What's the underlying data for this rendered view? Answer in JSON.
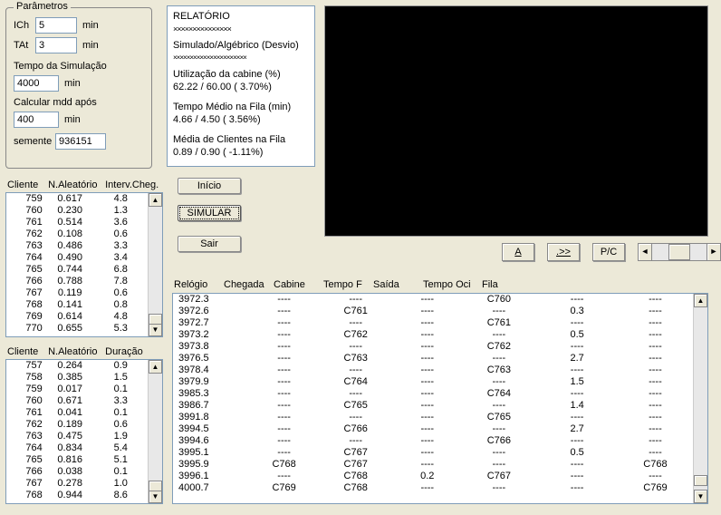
{
  "params": {
    "legend": "Parâmetros",
    "ich_label": "ICh",
    "ich_value": "5",
    "ich_unit": "min",
    "tat_label": "TAt",
    "tat_value": "3",
    "tat_unit": "min",
    "simtime_label": "Tempo da Simulação",
    "simtime_value": "4000",
    "simtime_unit": "min",
    "calcafter_label": "Calcular mdd após",
    "calcafter_value": "400",
    "calcafter_unit": "min",
    "seed_label": "semente",
    "seed_value": "936151"
  },
  "report": {
    "title": "RELATÓRIO",
    "sep": "×××××××××××××××",
    "line_sa": "Simulado/Algébrico (Desvio)",
    "sep2": "××××××××××××××××××××××",
    "util_label": "Utilização da cabine (%)",
    "util_values": "62.22 / 60.00   (  3.70%)",
    "tmf_label": "Tempo Médio na Fila (min)",
    "tmf_values": "  4.66 /   4.50   (  3.56%)",
    "mcf_label": "Média de Clientes na Fila",
    "mcf_values": "  0.89 /   0.90   ( -1.11%)"
  },
  "buttons": {
    "inicio": "Início",
    "simular": "SIMULAR",
    "sair": "Sair",
    "a": "A",
    "next": ".>>",
    "pc": "P/C"
  },
  "list_arrival": {
    "h1": "Cliente",
    "h2": "N.Aleatório",
    "h3": "Interv.Cheg.",
    "rows": [
      [
        "759",
        "0.617",
        "4.8"
      ],
      [
        "760",
        "0.230",
        "1.3"
      ],
      [
        "761",
        "0.514",
        "3.6"
      ],
      [
        "762",
        "0.108",
        "0.6"
      ],
      [
        "763",
        "0.486",
        "3.3"
      ],
      [
        "764",
        "0.490",
        "3.4"
      ],
      [
        "765",
        "0.744",
        "6.8"
      ],
      [
        "766",
        "0.788",
        "7.8"
      ],
      [
        "767",
        "0.119",
        "0.6"
      ],
      [
        "768",
        "0.141",
        "0.8"
      ],
      [
        "769",
        "0.614",
        "4.8"
      ],
      [
        "770",
        "0.655",
        "5.3"
      ]
    ]
  },
  "list_duration": {
    "h1": "Cliente",
    "h2": "N.Aleatório",
    "h3": "Duração",
    "rows": [
      [
        "757",
        "0.264",
        "0.9"
      ],
      [
        "758",
        "0.385",
        "1.5"
      ],
      [
        "759",
        "0.017",
        "0.1"
      ],
      [
        "760",
        "0.671",
        "3.3"
      ],
      [
        "761",
        "0.041",
        "0.1"
      ],
      [
        "762",
        "0.189",
        "0.6"
      ],
      [
        "763",
        "0.475",
        "1.9"
      ],
      [
        "764",
        "0.834",
        "5.4"
      ],
      [
        "765",
        "0.816",
        "5.1"
      ],
      [
        "766",
        "0.038",
        "0.1"
      ],
      [
        "767",
        "0.278",
        "1.0"
      ],
      [
        "768",
        "0.944",
        "8.6"
      ]
    ]
  },
  "main_table": {
    "headers": [
      "Relógio",
      "Chegada",
      "Cabine",
      "Tempo F",
      "Saída",
      "Tempo Oci",
      "Fila"
    ],
    "rows": [
      [
        "3972.3",
        "----",
        "----",
        "----",
        "C760",
        "----",
        "----"
      ],
      [
        "3972.6",
        "----",
        "C761",
        "----",
        "----",
        "0.3",
        "----"
      ],
      [
        "3972.7",
        "----",
        "----",
        "----",
        "C761",
        "----",
        "----"
      ],
      [
        "3973.2",
        "----",
        "C762",
        "----",
        "----",
        "0.5",
        "----"
      ],
      [
        "3973.8",
        "----",
        "----",
        "----",
        "C762",
        "----",
        "----"
      ],
      [
        "3976.5",
        "----",
        "C763",
        "----",
        "----",
        "2.7",
        "----"
      ],
      [
        "3978.4",
        "----",
        "----",
        "----",
        "C763",
        "----",
        "----"
      ],
      [
        "3979.9",
        "----",
        "C764",
        "----",
        "----",
        "1.5",
        "----"
      ],
      [
        "3985.3",
        "----",
        "----",
        "----",
        "C764",
        "----",
        "----"
      ],
      [
        "3986.7",
        "----",
        "C765",
        "----",
        "----",
        "1.4",
        "----"
      ],
      [
        "3991.8",
        "----",
        "----",
        "----",
        "C765",
        "----",
        "----"
      ],
      [
        "3994.5",
        "----",
        "C766",
        "----",
        "----",
        "2.7",
        "----"
      ],
      [
        "3994.6",
        "----",
        "----",
        "----",
        "C766",
        "----",
        "----"
      ],
      [
        "3995.1",
        "----",
        "C767",
        "----",
        "----",
        "0.5",
        "----"
      ],
      [
        "3995.9",
        "C768",
        "C767",
        "----",
        "----",
        "----",
        "C768"
      ],
      [
        "3996.1",
        "----",
        "C768",
        "0.2",
        "C767",
        "----",
        "----"
      ],
      [
        "4000.7",
        "C769",
        "C768",
        "----",
        "----",
        "----",
        "C769"
      ]
    ]
  },
  "colors": {
    "bg": "#ece9d8",
    "border": "#7f9db9",
    "black": "#000000"
  },
  "layout": {
    "col_widths_main": [
      55,
      55,
      55,
      55,
      55,
      65,
      55
    ],
    "col_widths_small": [
      42,
      60,
      60
    ]
  }
}
